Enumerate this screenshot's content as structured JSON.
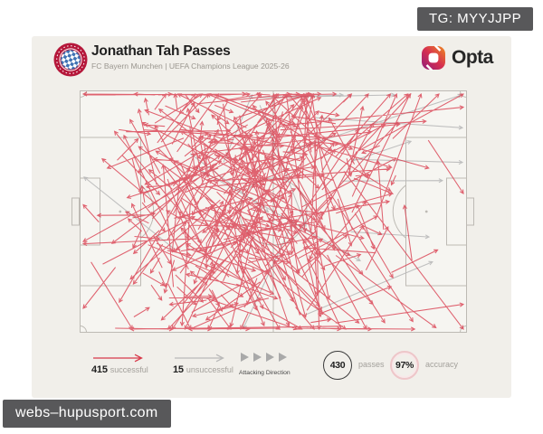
{
  "overlays": {
    "tg_badge": "TG: MYYJJPP",
    "watermark": "webs–hupusport.com"
  },
  "card": {
    "header": {
      "title": "Jonathan Tah Passes",
      "subtitle": "FC Bayern Munchen | UEFA Champions League 2025-26",
      "brand_name": "Opta"
    }
  },
  "chart_data": {
    "type": "pass-map",
    "title": "Jonathan Tah Passes",
    "subtitle": "FC Bayern Munchen | UEFA Champions League 2025-26",
    "player": "Jonathan Tah",
    "team": "FC Bayern Munchen",
    "competition": "UEFA Champions League 2025-26",
    "stats": {
      "successful_passes": 415,
      "unsuccessful_passes": 15,
      "total_passes": 430,
      "pass_accuracy": "97%"
    },
    "legend": {
      "successful": {
        "value": "415",
        "label": "successful",
        "color": "#d8394a"
      },
      "unsuccessful": {
        "value": "15",
        "label": "unsuccessful",
        "color": "#b9b9b9"
      },
      "attacking_direction": "Attacking Direction",
      "passes": {
        "value": "430",
        "label": "passes"
      },
      "accuracy": {
        "value": "97%",
        "label": "accuracy"
      }
    },
    "pitch": {
      "orientation": "horizontal, attacking left-to-right",
      "bg": "#f6f5f1",
      "line_color": "#bdbab4"
    },
    "generation": {
      "seed": 11,
      "pitch_w": 428,
      "pitch_h": 268,
      "successful": {
        "count": 415,
        "origin": [
          0.42,
          0.46
        ],
        "spread": [
          0.17,
          0.27
        ]
      },
      "unsuccessful": {
        "count": 15,
        "origin": [
          0.45,
          0.42
        ],
        "spread": [
          0.16,
          0.3
        ]
      }
    }
  }
}
